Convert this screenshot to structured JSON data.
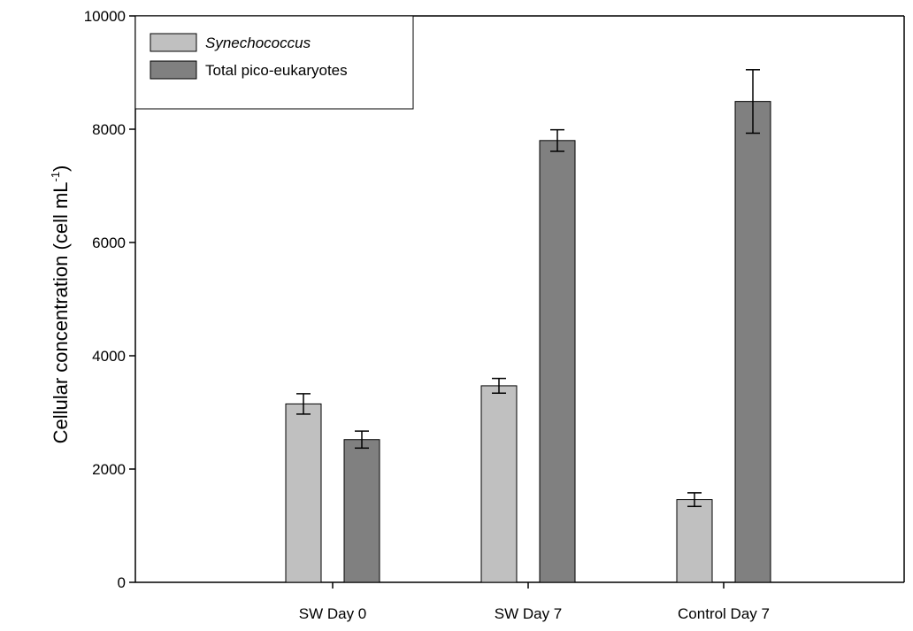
{
  "chart_data": {
    "type": "bar",
    "categories": [
      "SW Day 0",
      "SW Day 7",
      "Control Day 7"
    ],
    "series": [
      {
        "name": "Synechococcus",
        "values": [
          3150,
          3470,
          1460
        ],
        "errors": [
          180,
          130,
          120
        ],
        "color": "#c0c0c0"
      },
      {
        "name": "Total pico-eukaryotes",
        "values": [
          2520,
          7800,
          8490
        ],
        "errors": [
          150,
          190,
          560
        ],
        "color": "#808080"
      }
    ],
    "ylabel": {
      "text": "Cellular concentration (cell mL",
      "superscript": "-1",
      "close": ")"
    },
    "ylim": [
      0,
      10000
    ],
    "yticks": [
      "0",
      "2000",
      "4000",
      "6000",
      "8000",
      "10000"
    ],
    "grid": false,
    "legend_position": "top-left"
  }
}
